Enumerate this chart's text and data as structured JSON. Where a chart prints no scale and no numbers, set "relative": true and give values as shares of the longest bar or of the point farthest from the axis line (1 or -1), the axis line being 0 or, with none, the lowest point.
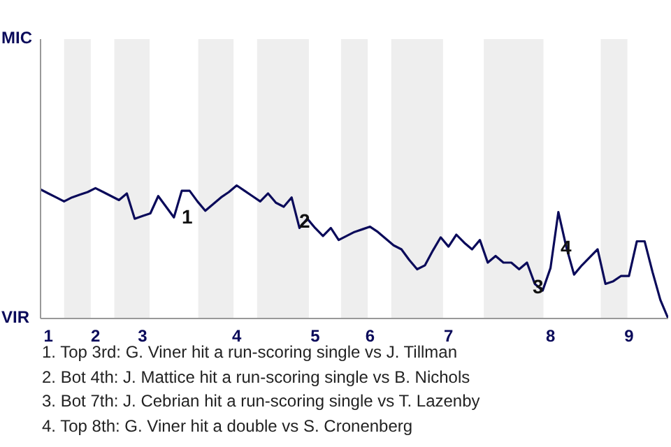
{
  "chart_data": {
    "type": "line",
    "relative": true,
    "categories": [
      null,
      "1",
      null,
      null,
      null,
      null,
      null,
      "2",
      null,
      null,
      null,
      null,
      null,
      "3",
      null,
      null,
      null,
      null,
      null,
      null,
      null,
      null,
      null,
      null,
      null,
      "4",
      null,
      null,
      null,
      null,
      null,
      null,
      null,
      null,
      null,
      "5",
      null,
      null,
      null,
      null,
      null,
      null,
      "6",
      null,
      null,
      null,
      null,
      null,
      null,
      null,
      null,
      null,
      "7",
      null,
      null,
      null,
      null,
      null,
      null,
      null,
      null,
      null,
      null,
      null,
      null,
      "8",
      null,
      null,
      null,
      null,
      null,
      null,
      null,
      null,
      null,
      "9",
      null,
      null,
      null,
      null,
      null
    ],
    "series": [
      {
        "color": "#0a0a5a",
        "values": [
          0.97,
          0.94,
          0.91,
          0.88,
          0.91,
          0.93,
          0.95,
          0.98,
          0.95,
          0.92,
          0.89,
          0.94,
          0.75,
          0.77,
          0.79,
          0.92,
          0.84,
          0.76,
          0.96,
          0.96,
          0.88,
          0.81,
          0.86,
          0.91,
          0.95,
          1,
          0.96,
          0.92,
          0.88,
          0.94,
          0.87,
          0.84,
          0.91,
          0.68,
          0.75,
          0.68,
          0.62,
          0.68,
          0.59,
          0.62,
          0.65,
          0.67,
          0.69,
          0.65,
          0.6,
          0.55,
          0.52,
          0.44,
          0.37,
          0.4,
          0.51,
          0.61,
          0.54,
          0.63,
          0.57,
          0.52,
          0.59,
          0.42,
          0.47,
          0.42,
          0.42,
          0.37,
          0.42,
          0.26,
          0.21,
          0.38,
          0.8,
          0.54,
          0.33,
          0.4,
          0.46,
          0.52,
          0.26,
          0.28,
          0.32,
          0.32,
          0.58,
          0.58,
          0.35,
          0.14,
          0
        ]
      }
    ],
    "marker": "none",
    "line_style": "solid",
    "annotations": [
      "MIC",
      "VIR",
      "1",
      "2",
      "3",
      "4",
      "1. Top 3rd: G. Viner hit a run-scoring single vs J. Tillman",
      "2. Bot 4th: J. Mattice hit a run-scoring single vs B. Nichols",
      "3. Bot 7th: J. Cebrian hit a run-scoring single vs T. Lazenby",
      "4. Top 8th: G. Viner hit a double vs S. Cronenberg"
    ]
  }
}
